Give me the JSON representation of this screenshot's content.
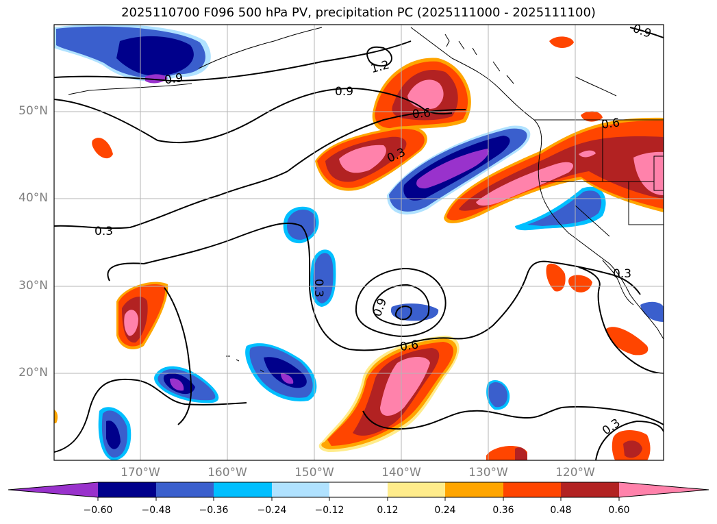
{
  "title": "2025110700 F096 500 hPa PV, precipitation PC (2025111000 - 2025111100)",
  "map": {
    "lat_labels": [
      "50°N",
      "40°N",
      "30°N",
      "20°N"
    ],
    "lon_labels": [
      "170°W",
      "160°W",
      "150°W",
      "140°W",
      "130°W",
      "120°W"
    ],
    "contour_labels": [
      "0.9",
      "1.2",
      "0.9",
      "0.6",
      "0.3",
      "0.6",
      "0.3",
      "0.3",
      "0.9",
      "0.6",
      "0.3",
      "0.3",
      "0.9"
    ],
    "contour_color": "#000000",
    "grid": true
  },
  "colorbar": {
    "ticks": [
      "−0.60",
      "−0.48",
      "−0.36",
      "−0.24",
      "−0.12",
      "0.12",
      "0.24",
      "0.36",
      "0.48",
      "0.60"
    ],
    "colors": [
      "#9932cc",
      "#00008b",
      "#3a5fcd",
      "#00bfff",
      "#b0e2ff",
      "#ffffff",
      "#ffec8b",
      "#ffa500",
      "#ff4500",
      "#b22222",
      "#ff82ab"
    ],
    "extend": "both"
  }
}
